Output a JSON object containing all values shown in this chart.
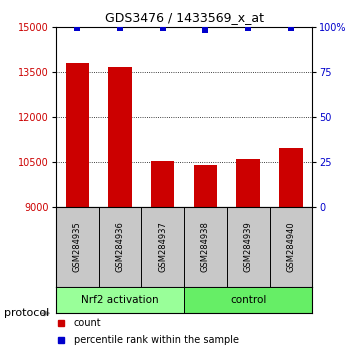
{
  "title": "GDS3476 / 1433569_x_at",
  "samples": [
    "GSM284935",
    "GSM284936",
    "GSM284937",
    "GSM284938",
    "GSM284939",
    "GSM284940"
  ],
  "counts": [
    13800,
    13650,
    10520,
    10380,
    10600,
    10950
  ],
  "percentile_ranks": [
    99,
    99,
    99,
    98,
    99,
    99
  ],
  "ylim": [
    9000,
    15000
  ],
  "yticks": [
    9000,
    10500,
    12000,
    13500,
    15000
  ],
  "right_yticks": [
    0,
    25,
    50,
    75,
    100
  ],
  "right_yticklabels": [
    "0",
    "25",
    "50",
    "75",
    "100%"
  ],
  "bar_color": "#cc0000",
  "dot_color": "#0000cc",
  "groups": [
    {
      "label": "Nrf2 activation",
      "indices": [
        0,
        1,
        2
      ],
      "color": "#99ff99"
    },
    {
      "label": "control",
      "indices": [
        3,
        4,
        5
      ],
      "color": "#66ee66"
    }
  ],
  "protocol_label": "protocol",
  "legend_items": [
    {
      "label": "count",
      "color": "#cc0000"
    },
    {
      "label": "percentile rank within the sample",
      "color": "#0000cc"
    }
  ],
  "background_color": "#ffffff",
  "sample_box_color": "#c8c8c8",
  "plot_bg_color": "#ffffff",
  "title_fontsize": 9,
  "tick_fontsize": 7,
  "sample_fontsize": 6,
  "group_fontsize": 7.5,
  "legend_fontsize": 7
}
